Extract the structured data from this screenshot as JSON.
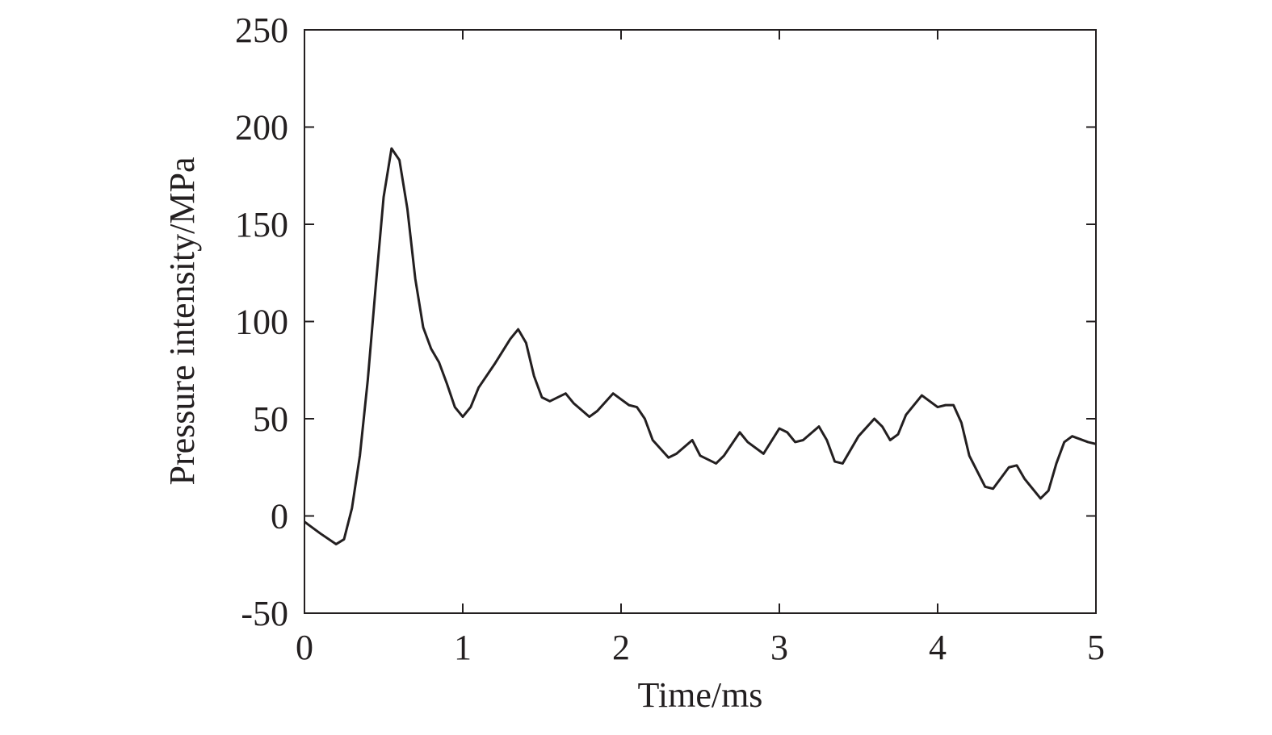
{
  "chart_data": {
    "type": "line",
    "x_label": "Time/ms",
    "y_label": "Pressure intensity/MPa",
    "x": [
      0,
      0.1,
      0.2,
      0.25,
      0.3,
      0.35,
      0.4,
      0.45,
      0.5,
      0.55,
      0.6,
      0.65,
      0.7,
      0.75,
      0.8,
      0.85,
      0.9,
      0.95,
      1.0,
      1.05,
      1.1,
      1.2,
      1.3,
      1.35,
      1.4,
      1.45,
      1.5,
      1.55,
      1.65,
      1.7,
      1.8,
      1.85,
      1.95,
      2.0,
      2.05,
      2.1,
      2.15,
      2.2,
      2.3,
      2.35,
      2.45,
      2.5,
      2.6,
      2.65,
      2.75,
      2.8,
      2.9,
      3.0,
      3.05,
      3.1,
      3.15,
      3.25,
      3.3,
      3.35,
      3.4,
      3.5,
      3.6,
      3.65,
      3.7,
      3.75,
      3.8,
      3.9,
      4.0,
      4.05,
      4.1,
      4.15,
      4.2,
      4.3,
      4.35,
      4.45,
      4.5,
      4.55,
      4.65,
      4.7,
      4.75,
      4.8,
      4.85,
      4.95,
      5.0
    ],
    "series": [
      {
        "color": "#231f20",
        "values": [
          -3,
          -9,
          -14.5,
          -12,
          4,
          31,
          70,
          118,
          164,
          189,
          183,
          158,
          122,
          97,
          86,
          79,
          68,
          56,
          51,
          56,
          66,
          78,
          91,
          96,
          89,
          72,
          61,
          59,
          63,
          58,
          51,
          54,
          63,
          60,
          57,
          56,
          50,
          39,
          30,
          32,
          39,
          31,
          27,
          31,
          43,
          38,
          32,
          45,
          43,
          38,
          39,
          46,
          39,
          28,
          27,
          41,
          50,
          46,
          39,
          42,
          52,
          62,
          56,
          57,
          57,
          48,
          31,
          15,
          14,
          25,
          26,
          19,
          9,
          13,
          27,
          38,
          41,
          38,
          37
        ]
      }
    ],
    "xlim": [
      0,
      5
    ],
    "xticks": [
      0,
      1,
      2,
      3,
      4,
      5
    ],
    "ylim": [
      -50,
      250
    ],
    "yticks": [
      -50,
      0,
      50,
      100,
      150,
      200,
      250
    ]
  }
}
